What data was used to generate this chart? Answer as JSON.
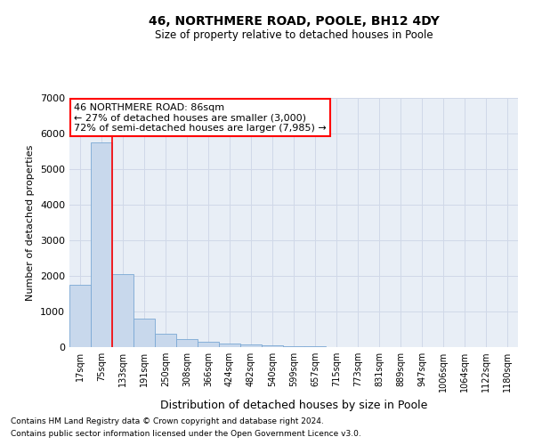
{
  "title1": "46, NORTHMERE ROAD, POOLE, BH12 4DY",
  "title2": "Size of property relative to detached houses in Poole",
  "xlabel": "Distribution of detached houses by size in Poole",
  "ylabel": "Number of detached properties",
  "bar_color": "#c8d8ec",
  "bar_edge_color": "#7aa8d4",
  "categories": [
    "17sqm",
    "75sqm",
    "133sqm",
    "191sqm",
    "250sqm",
    "308sqm",
    "366sqm",
    "424sqm",
    "482sqm",
    "540sqm",
    "599sqm",
    "657sqm",
    "715sqm",
    "773sqm",
    "831sqm",
    "889sqm",
    "947sqm",
    "1006sqm",
    "1064sqm",
    "1122sqm",
    "1180sqm"
  ],
  "values": [
    1750,
    5750,
    2050,
    800,
    370,
    230,
    160,
    100,
    70,
    50,
    30,
    15,
    10,
    4,
    2,
    1,
    1,
    1,
    1,
    1,
    1
  ],
  "ylim": [
    0,
    7000
  ],
  "yticks": [
    0,
    1000,
    2000,
    3000,
    4000,
    5000,
    6000,
    7000
  ],
  "property_line_x": 1.5,
  "annotation_line1": "46 NORTHMERE ROAD: 86sqm",
  "annotation_line2": "← 27% of detached houses are smaller (3,000)",
  "annotation_line3": "72% of semi-detached houses are larger (7,985) →",
  "annotation_box_color": "white",
  "annotation_box_edge_color": "red",
  "footer1": "Contains HM Land Registry data © Crown copyright and database right 2024.",
  "footer2": "Contains public sector information licensed under the Open Government Licence v3.0.",
  "grid_color": "#d0d8e8",
  "background_color": "#e8eef6"
}
